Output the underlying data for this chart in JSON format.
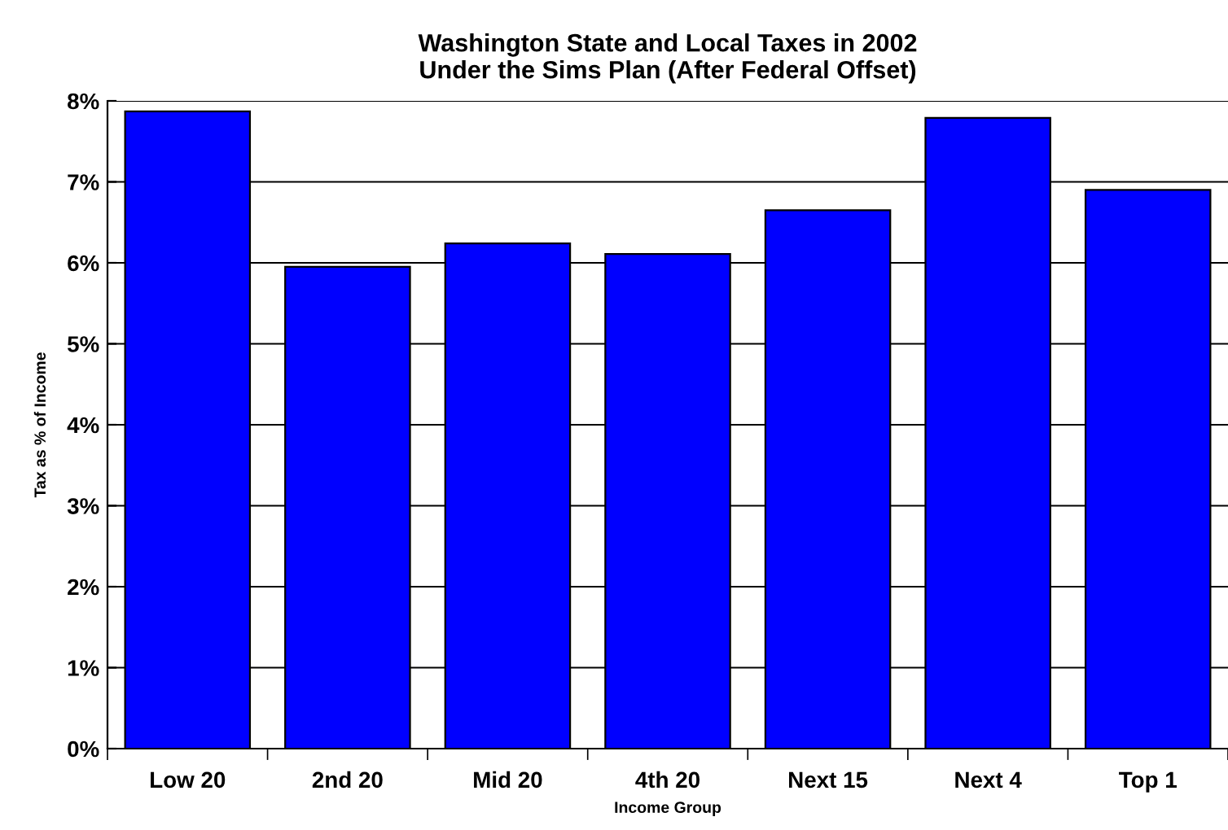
{
  "chart_data": {
    "type": "bar",
    "title": "Washington State and Local Taxes in 2002\nUnder the Sims Plan (After Federal Offset)",
    "xlabel": "Income Group",
    "ylabel": "Tax as % of Income",
    "categories": [
      "Low 20",
      "2nd 20",
      "Mid 20",
      "4th 20",
      "Next 15",
      "Next 4",
      "Top 1"
    ],
    "values": [
      7.87,
      5.95,
      6.24,
      6.11,
      6.65,
      7.79,
      6.9
    ],
    "color": "#0000ff",
    "ylim": [
      0,
      8
    ],
    "yticks": [
      {
        "value": 0,
        "label": "0%"
      },
      {
        "value": 1,
        "label": "1%"
      },
      {
        "value": 2,
        "label": "2%"
      },
      {
        "value": 3,
        "label": "3%"
      },
      {
        "value": 4,
        "label": "4%"
      },
      {
        "value": 5,
        "label": "5%"
      },
      {
        "value": 6,
        "label": "6%"
      },
      {
        "value": 7,
        "label": "7%"
      },
      {
        "value": 8,
        "label": "8%"
      }
    ],
    "grid": "y",
    "legend": false
  }
}
